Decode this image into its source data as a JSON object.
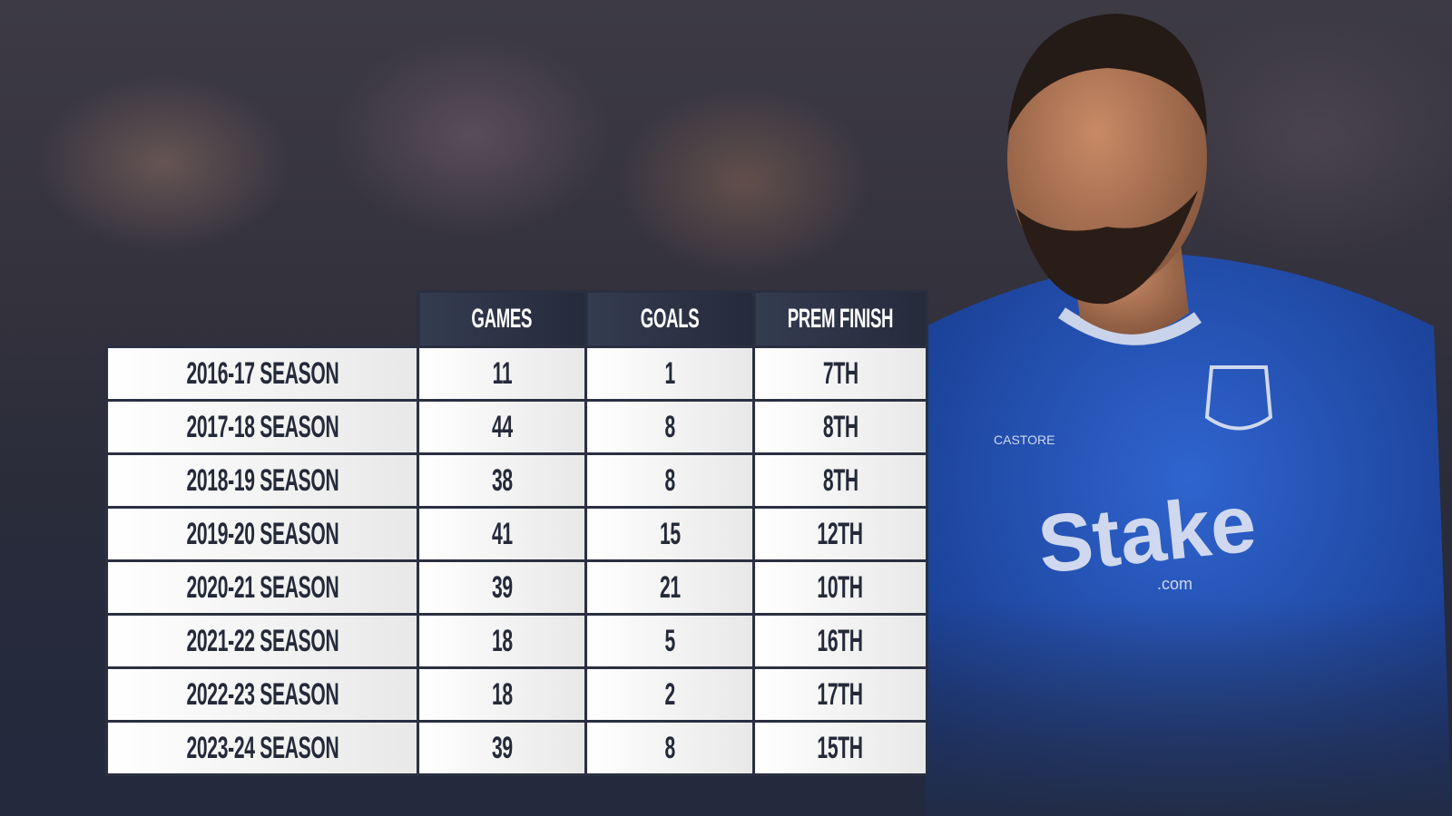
{
  "headers": [
    "GAMES",
    "GOALS",
    "PREM FINISH"
  ],
  "rows": [
    {
      "season": "2016-17 SEASON",
      "games": "11",
      "goals": "1",
      "finish": "7TH"
    },
    {
      "season": "2017-18 SEASON",
      "games": "44",
      "goals": "8",
      "finish": "8TH"
    },
    {
      "season": "2018-19 SEASON",
      "games": "38",
      "goals": "8",
      "finish": "8TH"
    },
    {
      "season": "2019-20 SEASON",
      "games": "41",
      "goals": "15",
      "finish": "12TH"
    },
    {
      "season": "2020-21 SEASON",
      "games": "39",
      "goals": "21",
      "finish": "10TH"
    },
    {
      "season": "2021-22 SEASON",
      "games": "18",
      "goals": "5",
      "finish": "16TH"
    },
    {
      "season": "2022-23 SEASON",
      "games": "18",
      "goals": "2",
      "finish": "17TH"
    },
    {
      "season": "2023-24 SEASON",
      "games": "39",
      "goals": "8",
      "finish": "15TH"
    }
  ],
  "shirt": {
    "sponsor": "Stake",
    "sponsor_sub": ".com",
    "brand": "CASTORE"
  },
  "colors": {
    "header_bg": "#2b3245",
    "cell_bg": "#f2f2f2",
    "text": "#252a3a",
    "kit_blue": "#2a5bc4"
  }
}
